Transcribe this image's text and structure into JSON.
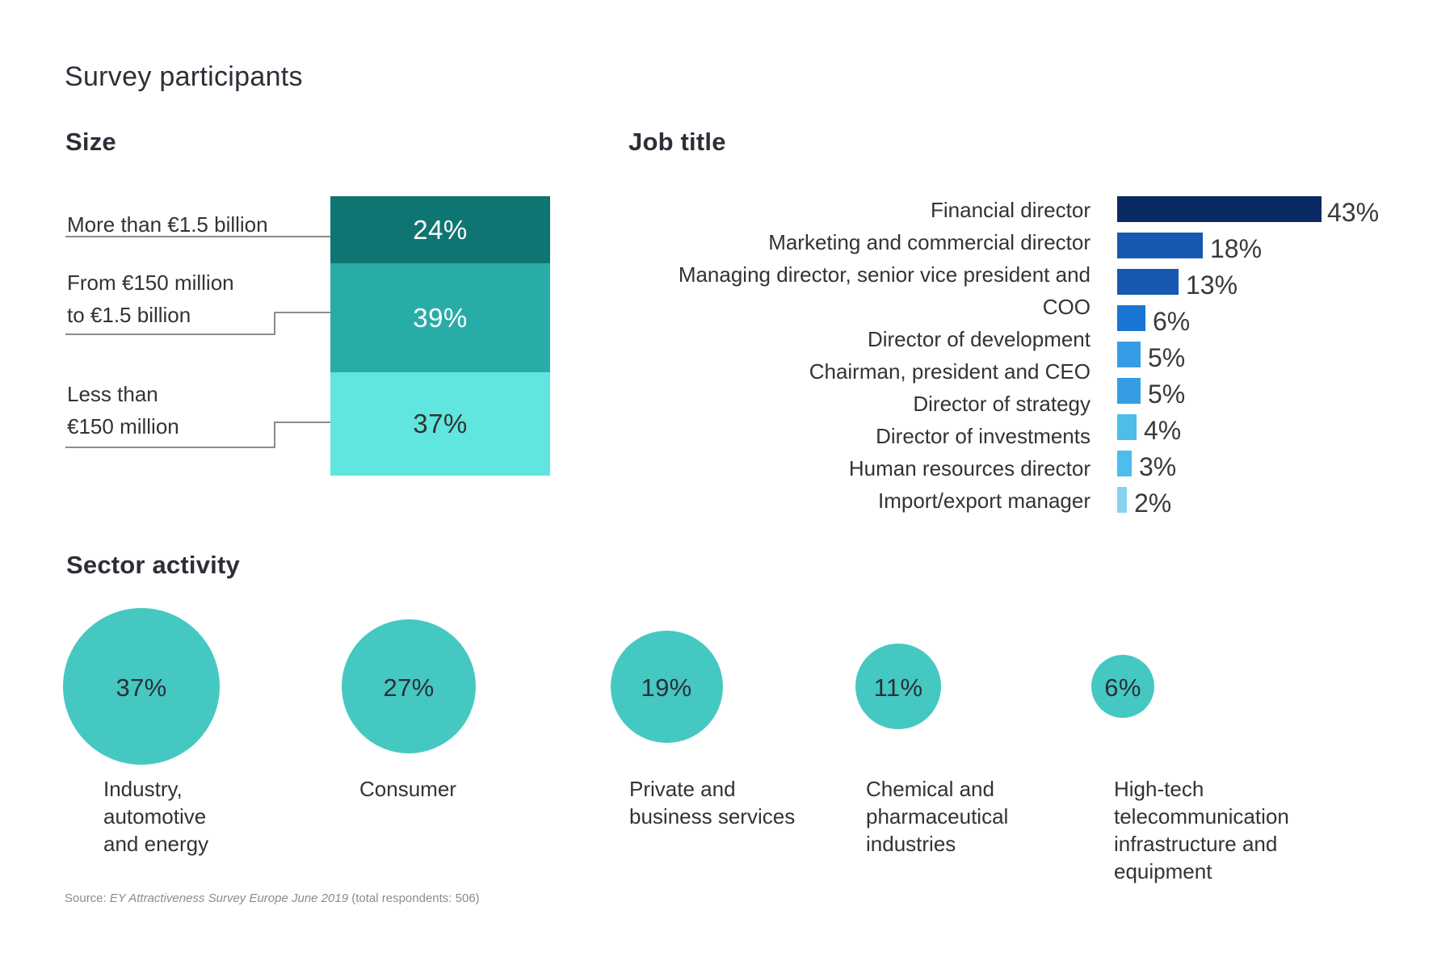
{
  "page": {
    "title": "Survey participants",
    "source_prefix": "Source: ",
    "source_title": "EY Attractiveness Survey Europe June 2019",
    "source_suffix": " (total respondents: 506)"
  },
  "colors": {
    "size_segments": [
      "#0f7572",
      "#28aca8",
      "#60e6df"
    ],
    "job_bars": [
      "#0a2a63",
      "#1658b2",
      "#1658b2",
      "#1a75d2",
      "#359de6",
      "#359de6",
      "#4dbde9",
      "#4dbde9",
      "#88d4f0"
    ],
    "bubbles": "#45c8c1",
    "text": "#2e2e38",
    "connector": "#8c8c8c"
  },
  "chart_data": [
    {
      "type": "bar",
      "subtype": "stacked-100",
      "title": "Size",
      "categories": [
        "More than €1.5 billion",
        "From €150 million to €1.5 billion",
        "Less than €150 million"
      ],
      "label_lines": [
        [
          "More than €1.5 billion"
        ],
        [
          "From €150 million",
          "to €1.5 billion"
        ],
        [
          "Less than",
          "€150 million"
        ]
      ],
      "values": [
        24,
        39,
        37
      ],
      "value_labels": [
        "24%",
        "39%",
        "37%"
      ],
      "unit": "%"
    },
    {
      "type": "bar",
      "orientation": "horizontal",
      "title": "Job title",
      "label_lines": [
        "Financial director",
        "Marketing and commercial director",
        "Managing director, senior vice president and",
        "COO",
        "Director of development",
        "Chairman, president and CEO",
        "Director of strategy",
        "Director of investments",
        "Human resources director",
        "Import/export manager"
      ],
      "categories": [
        "Financial director",
        "Marketing and commercial director",
        "Managing director, senior vice president and COO",
        "Director of development",
        "Chairman, president and CEO",
        "Director of strategy",
        "Director of investments",
        "Human resources director",
        "Import/export manager"
      ],
      "values": [
        43,
        18,
        13,
        6,
        5,
        5,
        4,
        3,
        2
      ],
      "value_labels": [
        "43%",
        "18%",
        "13%",
        "6%",
        "5%",
        "5%",
        "4%",
        "3%",
        "2%"
      ],
      "unit": "%"
    },
    {
      "type": "bubble",
      "title": "Sector activity",
      "categories": [
        "Industry, automotive and energy",
        "Consumer",
        "Private and business services",
        "Chemical and pharmaceutical industries",
        "High-tech telecommunication infrastructure and equipment"
      ],
      "label_lines": [
        [
          "Industry,",
          "automotive",
          "and energy"
        ],
        [
          "Consumer"
        ],
        [
          "Private and",
          "business services"
        ],
        [
          "Chemical and",
          "pharmaceutical",
          "industries"
        ],
        [
          "High-tech",
          "telecommunication",
          "infrastructure and",
          "equipment"
        ]
      ],
      "values": [
        37,
        27,
        19,
        11,
        6
      ],
      "value_labels": [
        "37%",
        "27%",
        "19%",
        "11%",
        "6%"
      ],
      "unit": "%"
    }
  ]
}
